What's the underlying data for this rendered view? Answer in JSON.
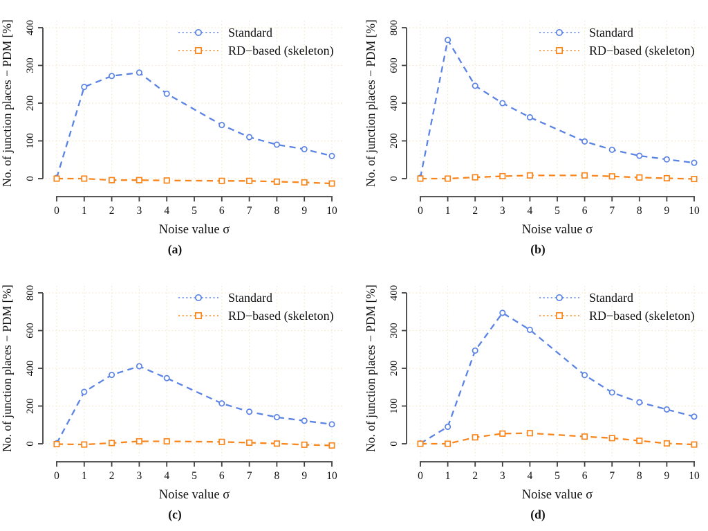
{
  "figure": {
    "xlabel": "Noise value σ",
    "ylabel": "No. of junction places − PDM [%]",
    "legend_labels": [
      "Standard",
      "RD−based (skeleton)"
    ],
    "colors": {
      "standard": "#5b83e3",
      "rd_based": "#f8861d",
      "grid": "#f2e7cd",
      "axis": "#3f3f3f",
      "text": "#111111",
      "background": "#ffffff"
    }
  },
  "chart_data": [
    {
      "type": "line",
      "panel_label": "(a)",
      "title": "",
      "xlabel": "Noise value σ",
      "ylabel": "No. of junction places − PDM [%]",
      "x": [
        0,
        1,
        2,
        3,
        4,
        6,
        7,
        8,
        9,
        10
      ],
      "xticks": [
        0,
        1,
        2,
        3,
        4,
        5,
        6,
        7,
        8,
        9,
        10
      ],
      "yticks": [
        0,
        100,
        200,
        300,
        400
      ],
      "ylim": [
        -45,
        400
      ],
      "ymax": 400,
      "grid": true,
      "legend_position": "top-right",
      "series": [
        {
          "name": "Standard",
          "marker": "circle",
          "color": "#5b83e3",
          "values": [
            2,
            243,
            272,
            281,
            225,
            142,
            110,
            90,
            78,
            60
          ]
        },
        {
          "name": "RD−based (skeleton)",
          "marker": "square",
          "color": "#f8861d",
          "values": [
            0,
            0,
            -4,
            -4,
            -5,
            -6,
            -6,
            -8,
            -10,
            -13
          ]
        }
      ]
    },
    {
      "type": "line",
      "panel_label": "(b)",
      "title": "",
      "xlabel": "Noise value σ",
      "ylabel": "No. of junction places − PDM [%]",
      "x": [
        0,
        1,
        2,
        3,
        4,
        6,
        7,
        8,
        9,
        10
      ],
      "xticks": [
        0,
        1,
        2,
        3,
        4,
        5,
        6,
        7,
        8,
        9,
        10
      ],
      "yticks": [
        0,
        200,
        400,
        600,
        800
      ],
      "ylim": [
        -45,
        800
      ],
      "ymax": 800,
      "grid": true,
      "legend_position": "top-right",
      "series": [
        {
          "name": "Standard",
          "marker": "circle",
          "color": "#5b83e3",
          "values": [
            5,
            735,
            492,
            400,
            325,
            197,
            153,
            121,
            102,
            84
          ]
        },
        {
          "name": "RD−based (skeleton)",
          "marker": "square",
          "color": "#f8861d",
          "values": [
            0,
            0,
            7,
            13,
            17,
            17,
            12,
            6,
            2,
            -2
          ]
        }
      ]
    },
    {
      "type": "line",
      "panel_label": "(c)",
      "title": "",
      "xlabel": "Noise value σ",
      "ylabel": "No. of junction places − PDM [%]",
      "x": [
        0,
        1,
        2,
        3,
        4,
        6,
        7,
        8,
        9,
        10
      ],
      "xticks": [
        0,
        1,
        2,
        3,
        4,
        5,
        6,
        7,
        8,
        9,
        10
      ],
      "yticks": [
        0,
        200,
        400,
        600,
        800
      ],
      "ylim": [
        -45,
        800
      ],
      "ymax": 800,
      "grid": true,
      "legend_position": "top-right",
      "series": [
        {
          "name": "Standard",
          "marker": "circle",
          "color": "#5b83e3",
          "values": [
            2,
            275,
            365,
            411,
            348,
            214,
            170,
            141,
            122,
            103
          ]
        },
        {
          "name": "RD−based (skeleton)",
          "marker": "square",
          "color": "#f8861d",
          "values": [
            -2,
            -4,
            4,
            13,
            13,
            10,
            6,
            1,
            -5,
            -9
          ]
        }
      ]
    },
    {
      "type": "line",
      "panel_label": "(d)",
      "title": "",
      "xlabel": "Noise value σ",
      "ylabel": "No. of junction places − PDM [%]",
      "x": [
        0,
        1,
        2,
        3,
        4,
        6,
        7,
        8,
        9,
        10
      ],
      "xticks": [
        0,
        1,
        2,
        3,
        4,
        5,
        6,
        7,
        8,
        9,
        10
      ],
      "yticks": [
        0,
        100,
        200,
        300,
        400
      ],
      "ylim": [
        -45,
        400
      ],
      "ymax": 400,
      "grid": true,
      "legend_position": "top-right",
      "series": [
        {
          "name": "Standard",
          "marker": "circle",
          "color": "#5b83e3",
          "values": [
            1,
            45,
            247,
            347,
            302,
            182,
            136,
            110,
            91,
            72
          ]
        },
        {
          "name": "RD−based (skeleton)",
          "marker": "square",
          "color": "#f8861d",
          "values": [
            0,
            0,
            17,
            27,
            28,
            19,
            15,
            8,
            1,
            -2
          ]
        }
      ]
    }
  ]
}
